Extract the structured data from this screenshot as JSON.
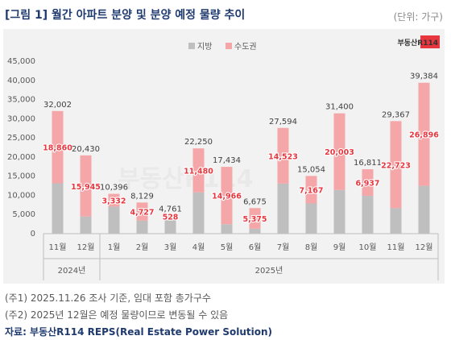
{
  "header": {
    "title": "[그림 1] 월간 아파트 분양 및 분양 예정 물량 추이",
    "unit": "(단위: 가구)"
  },
  "brand": {
    "logo_text": "부동산R114",
    "watermark_text": "부동산R114"
  },
  "footer": {
    "note1": "(주1) 2025.11.26 조사 기준, 임대 포함 총가구수",
    "note2": "(주2) 2025년 12월은 예정 물량이므로 변동될 수 있음",
    "source": "자료: 부동산R114 REPS(Real Estate Power Solution)"
  },
  "colors": {
    "regional": "#bfbfbf",
    "capital": "#f4a6a8",
    "capital_label": "#e8363f",
    "title": "#1f3a6e",
    "panel_bg": "#f2f2f2"
  },
  "chart_data": {
    "type": "bar",
    "stacked": true,
    "categories": [
      "11월",
      "12월",
      "1월",
      "2월",
      "3월",
      "4월",
      "5월",
      "6월",
      "7월",
      "8월",
      "9월",
      "10월",
      "11월",
      "12월"
    ],
    "year_groups": [
      {
        "label": "2024년",
        "months": [
          "11월",
          "12월"
        ]
      },
      {
        "label": "2025년",
        "months": [
          "1월",
          "2월",
          "3월",
          "4월",
          "5월",
          "6월",
          "7월",
          "8월",
          "9월",
          "10월",
          "11월",
          "12월"
        ]
      }
    ],
    "series": [
      {
        "name": "지방",
        "color": "#bfbfbf",
        "values": [
          13142,
          4485,
          7064,
          3402,
          4233,
          10770,
          2468,
          1300,
          13071,
          7887,
          11397,
          9874,
          6644,
          12488
        ]
      },
      {
        "name": "수도권",
        "color": "#f4a6a8",
        "values": [
          18860,
          15945,
          3332,
          4727,
          528,
          11480,
          14966,
          5375,
          14523,
          7167,
          20003,
          6937,
          22723,
          26896
        ]
      }
    ],
    "capital_labels": [
      "18,860",
      "15,945",
      "3,332",
      "4,727",
      "528",
      "11,480",
      "14,966",
      "5,375",
      "14,523",
      "7,167",
      "20,003",
      "6,937",
      "22,723",
      "26,896"
    ],
    "totals": [
      32002,
      20430,
      10396,
      8129,
      4761,
      22250,
      17434,
      6675,
      27594,
      15054,
      31400,
      16811,
      29367,
      39384
    ],
    "total_labels": [
      "32,002",
      "20,430",
      "10,396",
      "8,129",
      "4,761",
      "22,250",
      "17,434",
      "6,675",
      "27,594",
      "15,054",
      "31,400",
      "16,811",
      "29,367",
      "39,384"
    ],
    "y_ticks": [
      "0",
      "5,000",
      "10,000",
      "15,000",
      "20,000",
      "25,000",
      "30,000",
      "35,000",
      "40,000",
      "45,000"
    ],
    "ylim": [
      0,
      45000
    ],
    "legend_position": "top-left",
    "grid": false
  }
}
